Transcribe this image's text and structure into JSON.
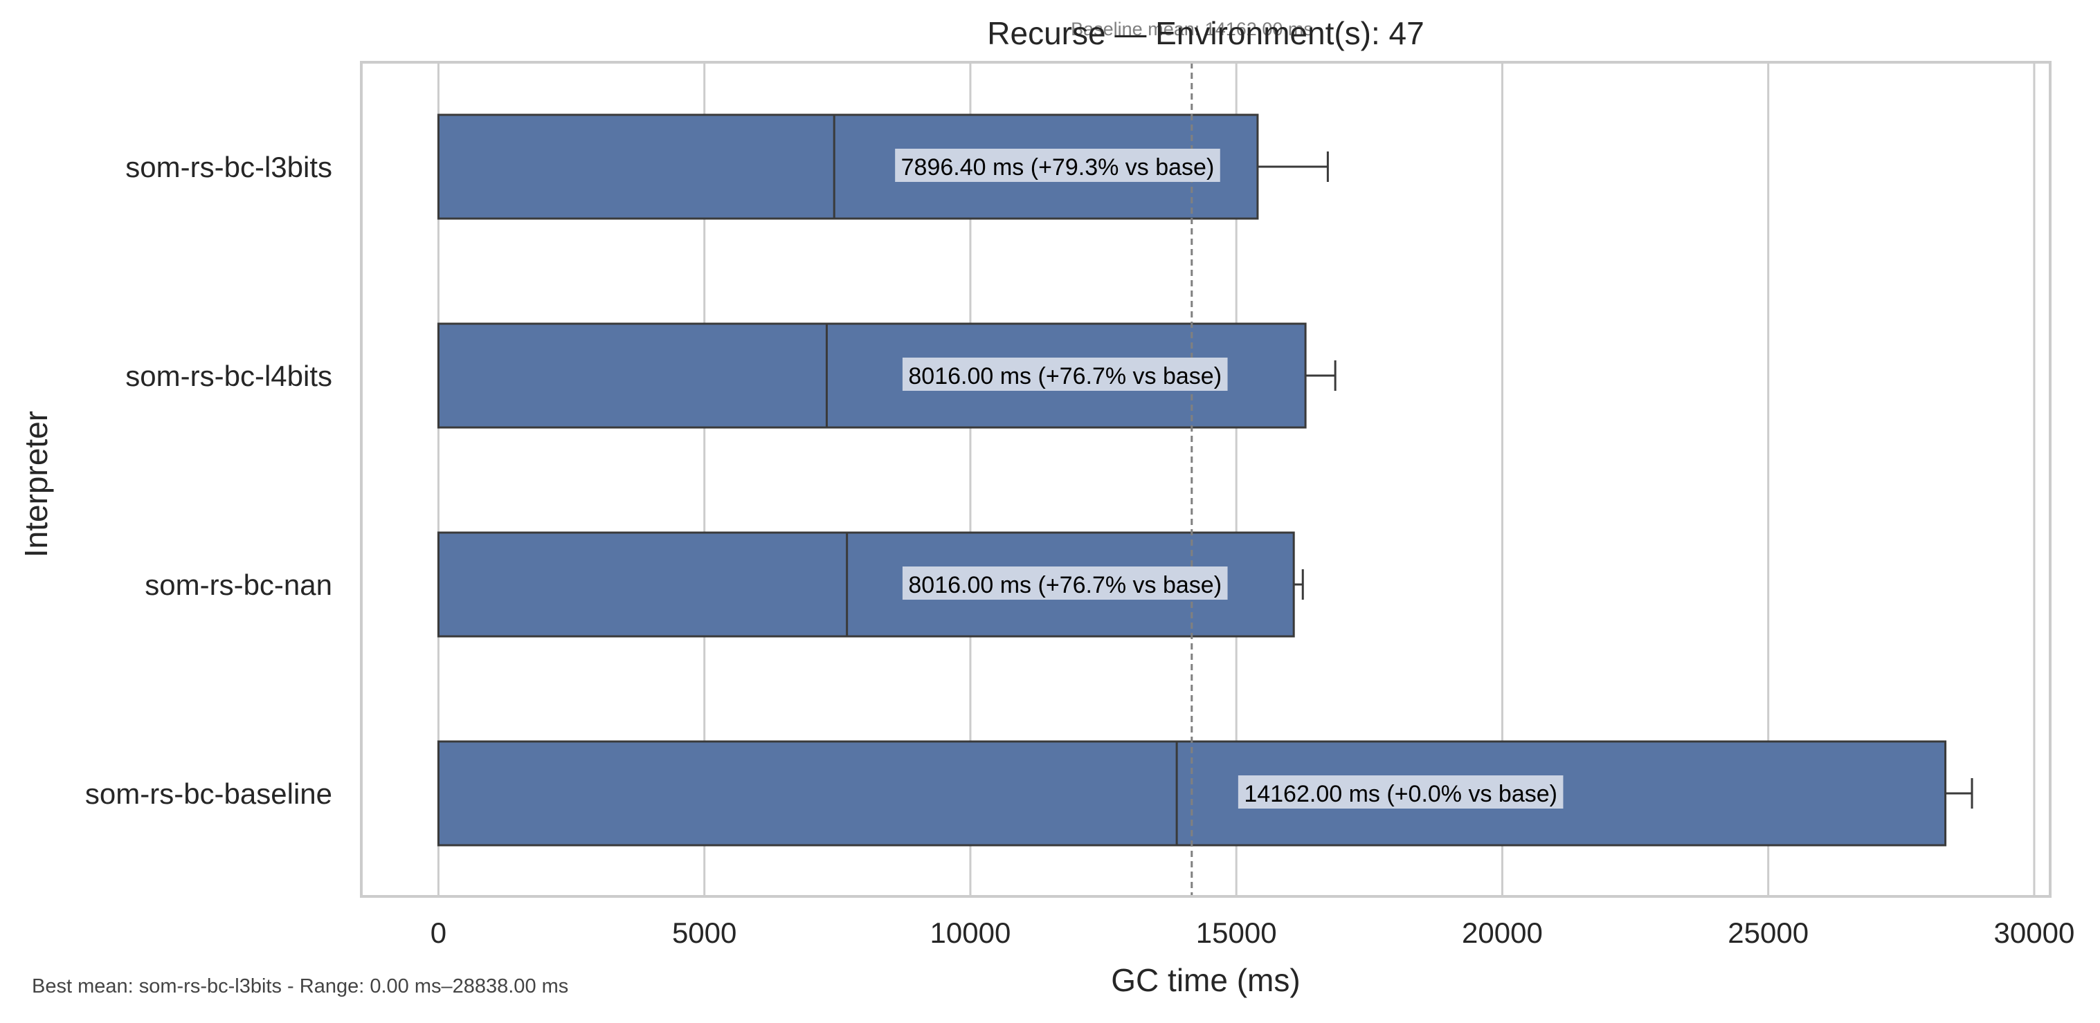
{
  "chart_data": {
    "type": "bar",
    "orientation": "horizontal",
    "title": "Recurse — Environment(s): 47",
    "baseline_note": "Baseline mean: 14162.00 ms",
    "xlabel": "GC time (ms)",
    "ylabel": "Interpreter",
    "xlim": [
      -1450,
      30300
    ],
    "xticks": [
      0,
      5000,
      10000,
      15000,
      20000,
      25000,
      30000
    ],
    "xtick_labels": [
      "0",
      "5000",
      "10000",
      "15000",
      "20000",
      "25000",
      "30000"
    ],
    "grid": "vertical",
    "baseline_value": 14162,
    "categories": [
      "som-rs-bc-l3bits",
      "som-rs-bc-l4bits",
      "som-rs-bc-nan",
      "som-rs-bc-baseline"
    ],
    "values": [
      15400,
      16300,
      16080,
      28330
    ],
    "medians": [
      7440,
      7300,
      7680,
      13880
    ],
    "error_ends": [
      16720,
      16860,
      16250,
      28830
    ],
    "labels": [
      "7896.40 ms  (+79.3% vs base)",
      "8016.00 ms  (+76.7% vs base)",
      "8016.00 ms  (+76.7% vs base)",
      "14162.00 ms  (+0.0% vs base)"
    ],
    "label_centers": [
      11640,
      11780,
      11780,
      18090
    ],
    "footer": "Best mean: som-rs-bc-l3bits - Range: 0.00 ms–28838.00 ms",
    "colors": {
      "bar": "#5875a4",
      "bar_edge": "#3a3a3a",
      "grid": "#cccccc",
      "frame": "#cccccc",
      "baseline_line": "#808080",
      "label_bg": "#ccd4e3",
      "text": "#262626",
      "footer_text": "#444444",
      "note_text": "#808080"
    }
  }
}
